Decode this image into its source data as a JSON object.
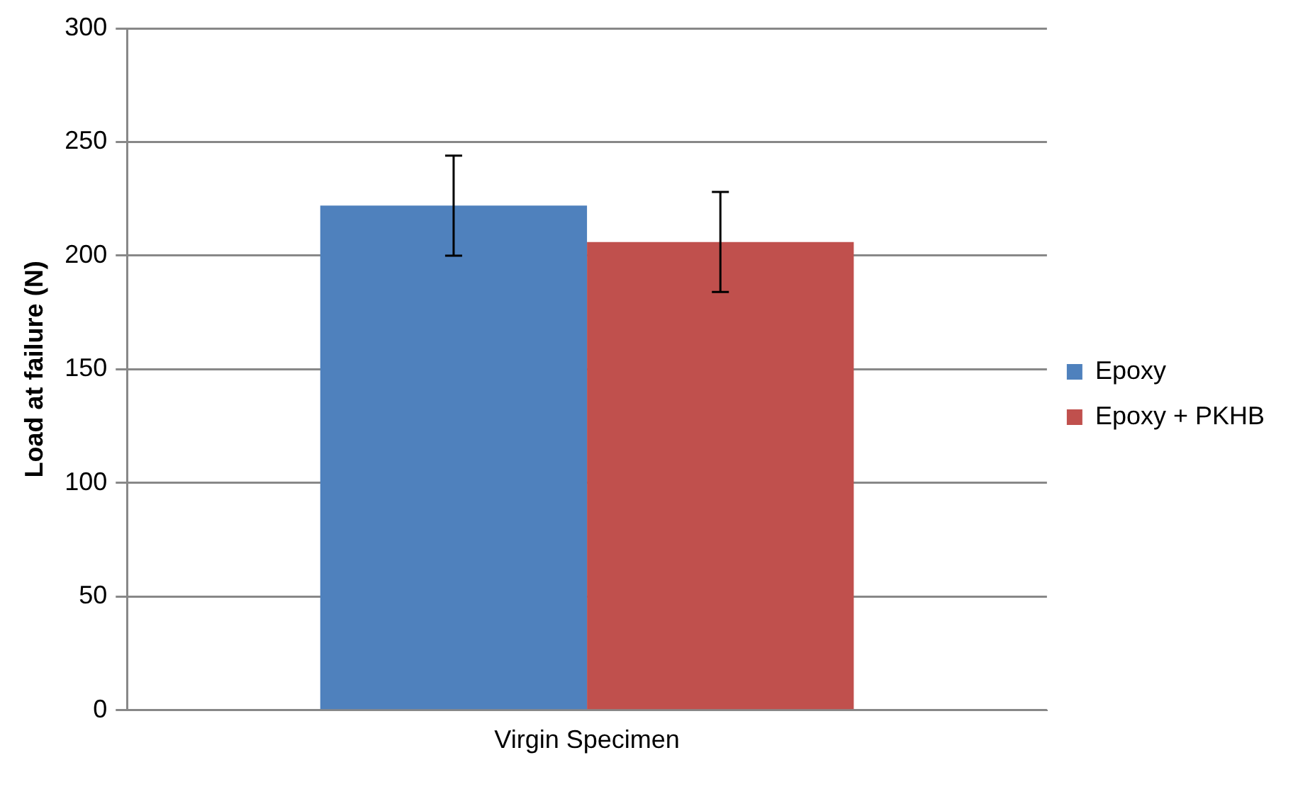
{
  "chart_data": {
    "type": "bar",
    "ylabel": "Load at failure (N)",
    "categories": [
      "Virgin Specimen"
    ],
    "series": [
      {
        "name": "Epoxy",
        "color": "#4f81bd",
        "values": [
          222
        ],
        "errors": [
          22
        ]
      },
      {
        "name": "Epoxy + PKHB",
        "color": "#c0504d",
        "values": [
          206
        ],
        "errors": [
          22
        ]
      }
    ],
    "ylim": [
      0,
      300
    ],
    "yticks": [
      0,
      50,
      100,
      150,
      200,
      250,
      300
    ],
    "grid": "y",
    "legend": "right"
  }
}
